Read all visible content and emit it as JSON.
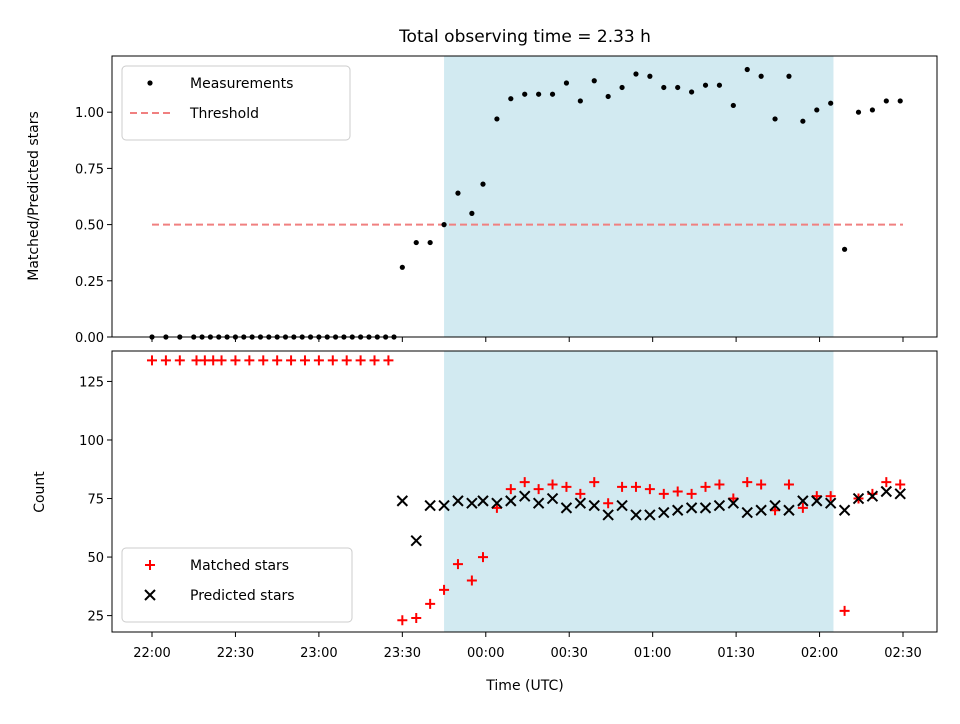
{
  "chart_data": [
    {
      "type": "scatter",
      "title": "Total observing time = 2.33 h",
      "ylabel": "Matched/Predicted stars",
      "xlabel": "",
      "ylim": [
        0,
        1.25
      ],
      "yticks": [
        "0.00",
        "0.25",
        "0.50",
        "0.75",
        "1.00"
      ],
      "grid": false,
      "legend_position": "top-left",
      "observing_window": {
        "start": "23:45",
        "end": "02:05",
        "color": "#add8e6"
      },
      "threshold": {
        "name": "Threshold",
        "value": 0.5,
        "x_start": "22:00",
        "x_end": "02:30",
        "color": "#f08080"
      },
      "series": [
        {
          "name": "Measurements",
          "marker": "dot",
          "color": "#000000",
          "points": [
            [
              "22:00",
              0
            ],
            [
              "22:05",
              0
            ],
            [
              "22:10",
              0
            ],
            [
              "22:15",
              0
            ],
            [
              "22:18",
              0
            ],
            [
              "22:21",
              0
            ],
            [
              "22:24",
              0
            ],
            [
              "22:27",
              0
            ],
            [
              "22:30",
              0
            ],
            [
              "22:33",
              0
            ],
            [
              "22:36",
              0
            ],
            [
              "22:39",
              0
            ],
            [
              "22:42",
              0
            ],
            [
              "22:45",
              0
            ],
            [
              "22:48",
              0
            ],
            [
              "22:51",
              0
            ],
            [
              "22:54",
              0
            ],
            [
              "22:57",
              0
            ],
            [
              "23:00",
              0
            ],
            [
              "23:03",
              0
            ],
            [
              "23:06",
              0
            ],
            [
              "23:09",
              0
            ],
            [
              "23:12",
              0
            ],
            [
              "23:15",
              0
            ],
            [
              "23:18",
              0
            ],
            [
              "23:21",
              0
            ],
            [
              "23:24",
              0
            ],
            [
              "23:27",
              0
            ],
            [
              "23:30",
              0.31
            ],
            [
              "23:35",
              0.42
            ],
            [
              "23:40",
              0.42
            ],
            [
              "23:45",
              0.5
            ],
            [
              "23:50",
              0.64
            ],
            [
              "23:55",
              0.55
            ],
            [
              "23:59",
              0.68
            ],
            [
              "00:04",
              0.97
            ],
            [
              "00:09",
              1.06
            ],
            [
              "00:14",
              1.08
            ],
            [
              "00:19",
              1.08
            ],
            [
              "00:24",
              1.08
            ],
            [
              "00:29",
              1.13
            ],
            [
              "00:34",
              1.05
            ],
            [
              "00:39",
              1.14
            ],
            [
              "00:44",
              1.07
            ],
            [
              "00:49",
              1.11
            ],
            [
              "00:54",
              1.17
            ],
            [
              "00:59",
              1.16
            ],
            [
              "01:04",
              1.11
            ],
            [
              "01:09",
              1.11
            ],
            [
              "01:14",
              1.09
            ],
            [
              "01:19",
              1.12
            ],
            [
              "01:24",
              1.12
            ],
            [
              "01:29",
              1.03
            ],
            [
              "01:34",
              1.19
            ],
            [
              "01:39",
              1.16
            ],
            [
              "01:44",
              0.97
            ],
            [
              "01:49",
              1.16
            ],
            [
              "01:54",
              0.96
            ],
            [
              "01:59",
              1.01
            ],
            [
              "02:04",
              1.04
            ],
            [
              "02:09",
              0.39
            ],
            [
              "02:14",
              1.0
            ],
            [
              "02:19",
              1.01
            ],
            [
              "02:24",
              1.05
            ],
            [
              "02:29",
              1.05
            ]
          ]
        }
      ]
    },
    {
      "type": "scatter",
      "title": "",
      "ylabel": "Count",
      "xlabel": "Time (UTC)",
      "xticks": [
        "22:00",
        "22:30",
        "23:00",
        "23:30",
        "00:00",
        "00:30",
        "01:00",
        "01:30",
        "02:00",
        "02:30"
      ],
      "ylim": [
        18,
        138
      ],
      "yticks": [
        "25",
        "50",
        "75",
        "100",
        "125"
      ],
      "grid": false,
      "legend_position": "bottom-left",
      "observing_window": {
        "start": "23:45",
        "end": "02:05",
        "color": "#add8e6"
      },
      "series": [
        {
          "name": "Matched stars",
          "marker": "plus",
          "color": "#ff0000",
          "points": [
            [
              "22:00",
              134
            ],
            [
              "22:05",
              134
            ],
            [
              "22:10",
              134
            ],
            [
              "22:16",
              134
            ],
            [
              "22:19",
              134
            ],
            [
              "22:22",
              134
            ],
            [
              "22:25",
              134
            ],
            [
              "22:30",
              134
            ],
            [
              "22:35",
              134
            ],
            [
              "22:40",
              134
            ],
            [
              "22:45",
              134
            ],
            [
              "22:50",
              134
            ],
            [
              "22:55",
              134
            ],
            [
              "23:00",
              134
            ],
            [
              "23:05",
              134
            ],
            [
              "23:10",
              134
            ],
            [
              "23:15",
              134
            ],
            [
              "23:20",
              134
            ],
            [
              "23:25",
              134
            ],
            [
              "23:30",
              23
            ],
            [
              "23:35",
              24
            ],
            [
              "23:40",
              30
            ],
            [
              "23:45",
              36
            ],
            [
              "23:50",
              47
            ],
            [
              "23:55",
              40
            ],
            [
              "23:59",
              50
            ],
            [
              "00:04",
              71
            ],
            [
              "00:09",
              79
            ],
            [
              "00:14",
              82
            ],
            [
              "00:19",
              79
            ],
            [
              "00:24",
              81
            ],
            [
              "00:29",
              80
            ],
            [
              "00:34",
              77
            ],
            [
              "00:39",
              82
            ],
            [
              "00:44",
              73
            ],
            [
              "00:49",
              80
            ],
            [
              "00:54",
              80
            ],
            [
              "00:59",
              79
            ],
            [
              "01:04",
              77
            ],
            [
              "01:09",
              78
            ],
            [
              "01:14",
              77
            ],
            [
              "01:19",
              80
            ],
            [
              "01:24",
              81
            ],
            [
              "01:29",
              75
            ],
            [
              "01:34",
              82
            ],
            [
              "01:39",
              81
            ],
            [
              "01:44",
              70
            ],
            [
              "01:49",
              81
            ],
            [
              "01:54",
              71
            ],
            [
              "01:59",
              76
            ],
            [
              "02:04",
              76
            ],
            [
              "02:09",
              27
            ],
            [
              "02:14",
              75
            ],
            [
              "02:19",
              77
            ],
            [
              "02:24",
              82
            ],
            [
              "02:29",
              81
            ]
          ]
        },
        {
          "name": "Predicted stars",
          "marker": "x",
          "color": "#000000",
          "points": [
            [
              "23:30",
              74
            ],
            [
              "23:35",
              57
            ],
            [
              "23:40",
              72
            ],
            [
              "23:45",
              72
            ],
            [
              "23:50",
              74
            ],
            [
              "23:55",
              73
            ],
            [
              "23:59",
              74
            ],
            [
              "00:04",
              73
            ],
            [
              "00:09",
              74
            ],
            [
              "00:14",
              76
            ],
            [
              "00:19",
              73
            ],
            [
              "00:24",
              75
            ],
            [
              "00:29",
              71
            ],
            [
              "00:34",
              73
            ],
            [
              "00:39",
              72
            ],
            [
              "00:44",
              68
            ],
            [
              "00:49",
              72
            ],
            [
              "00:54",
              68
            ],
            [
              "00:59",
              68
            ],
            [
              "01:04",
              69
            ],
            [
              "01:09",
              70
            ],
            [
              "01:14",
              71
            ],
            [
              "01:19",
              71
            ],
            [
              "01:24",
              72
            ],
            [
              "01:29",
              73
            ],
            [
              "01:34",
              69
            ],
            [
              "01:39",
              70
            ],
            [
              "01:44",
              72
            ],
            [
              "01:49",
              70
            ],
            [
              "01:54",
              74
            ],
            [
              "01:59",
              74
            ],
            [
              "02:04",
              73
            ],
            [
              "02:09",
              70
            ],
            [
              "02:14",
              75
            ],
            [
              "02:19",
              76
            ],
            [
              "02:24",
              78
            ],
            [
              "02:29",
              77
            ]
          ]
        }
      ]
    }
  ]
}
